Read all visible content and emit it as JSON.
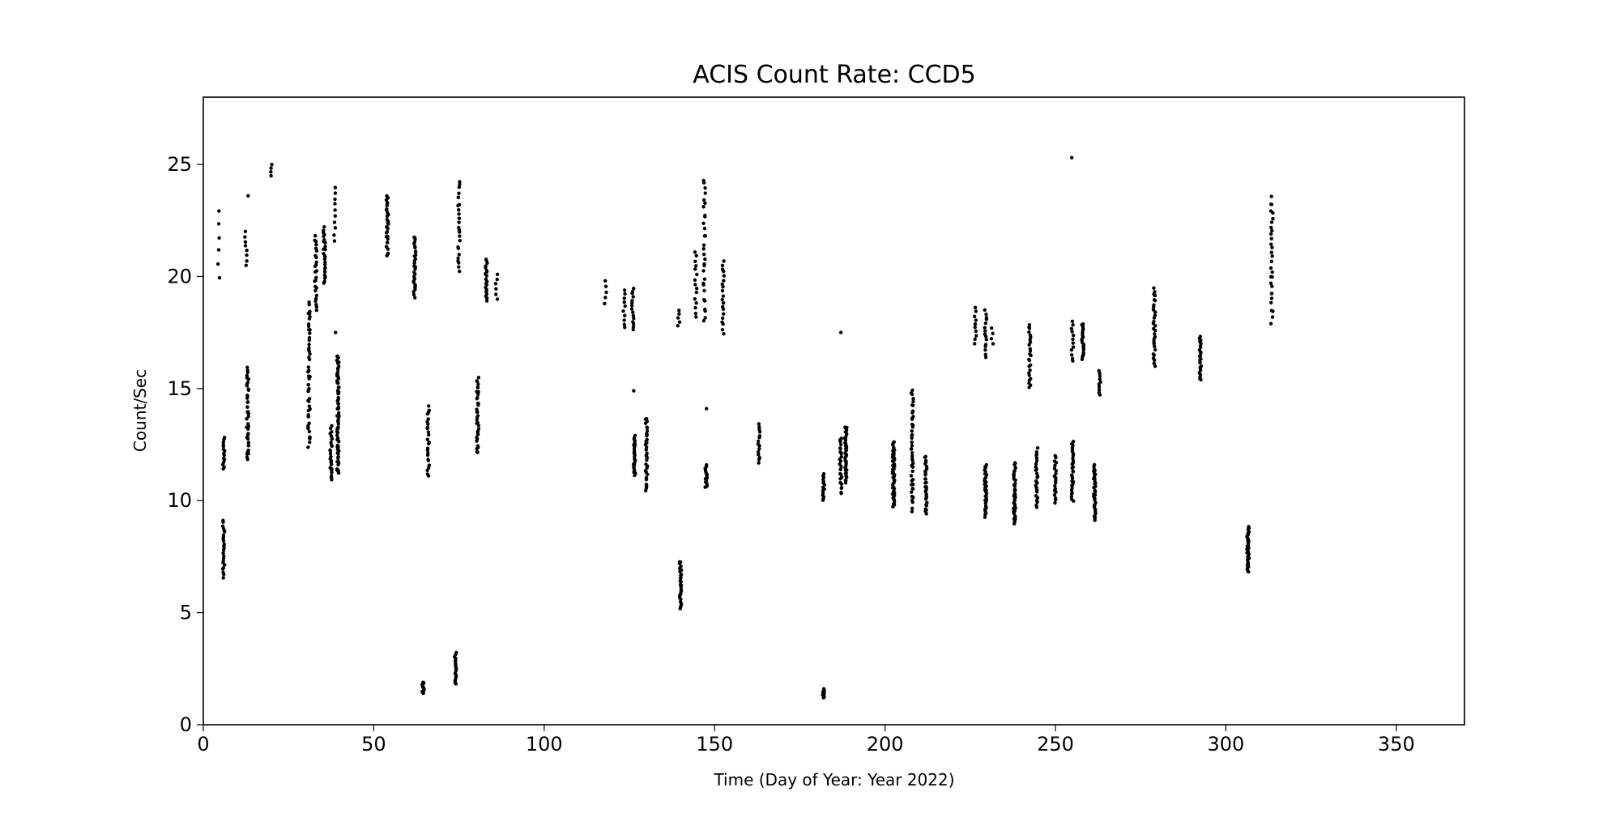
{
  "chart_data": {
    "type": "scatter",
    "title": "ACIS Count Rate: CCD5",
    "xlabel": "Time (Day of Year: Year 2022)",
    "ylabel": "Count/Sec",
    "xlim": [
      0,
      370
    ],
    "ylim": [
      0,
      28
    ],
    "xticks": [
      0,
      50,
      100,
      150,
      200,
      250,
      300,
      350
    ],
    "yticks": [
      0,
      5,
      10,
      15,
      20,
      25
    ],
    "grid": false,
    "marker_color": "#000000",
    "note": "points grouped as vertical clusters: x (day), y range (count/sec), approximate point count",
    "clusters": [
      {
        "x": 4.5,
        "y": [
          20,
          22.9
        ],
        "n": 6
      },
      {
        "x": 6,
        "y": [
          11.4,
          12.8
        ],
        "n": 15
      },
      {
        "x": 6,
        "y": [
          6.6,
          9.1
        ],
        "n": 25
      },
      {
        "x": 12.5,
        "y": [
          20.5,
          22
        ],
        "n": 8
      },
      {
        "x": 13,
        "y": [
          11.8,
          15.9
        ],
        "n": 40
      },
      {
        "x": 13,
        "y": [
          23.6,
          23.6
        ],
        "n": 1
      },
      {
        "x": 20,
        "y": [
          24.5,
          25
        ],
        "n": 4
      },
      {
        "x": 31,
        "y": [
          12.4,
          18.8
        ],
        "n": 50
      },
      {
        "x": 33,
        "y": [
          18.5,
          21.8
        ],
        "n": 25
      },
      {
        "x": 35.5,
        "y": [
          19.7,
          22.2
        ],
        "n": 25
      },
      {
        "x": 37.5,
        "y": [
          10.9,
          13.3
        ],
        "n": 25
      },
      {
        "x": 38.5,
        "y": [
          21.6,
          24
        ],
        "n": 10
      },
      {
        "x": 39.5,
        "y": [
          11.2,
          16.5
        ],
        "n": 80
      },
      {
        "x": 39,
        "y": [
          17.5,
          17.5
        ],
        "n": 1
      },
      {
        "x": 54,
        "y": [
          20.9,
          23.6
        ],
        "n": 30
      },
      {
        "x": 62,
        "y": [
          19.1,
          21.8
        ],
        "n": 30
      },
      {
        "x": 64.5,
        "y": [
          1.4,
          1.9
        ],
        "n": 15
      },
      {
        "x": 66,
        "y": [
          11.1,
          14.2
        ],
        "n": 25
      },
      {
        "x": 74,
        "y": [
          1.8,
          3.2
        ],
        "n": 20
      },
      {
        "x": 75,
        "y": [
          20.2,
          24.3
        ],
        "n": 25
      },
      {
        "x": 80.5,
        "y": [
          12.1,
          15.5
        ],
        "n": 35
      },
      {
        "x": 83,
        "y": [
          18.9,
          20.8
        ],
        "n": 20
      },
      {
        "x": 86,
        "y": [
          19,
          20.1
        ],
        "n": 6
      },
      {
        "x": 118,
        "y": [
          18.8,
          19.8
        ],
        "n": 5
      },
      {
        "x": 123.5,
        "y": [
          17.7,
          19.4
        ],
        "n": 10
      },
      {
        "x": 126,
        "y": [
          17.6,
          19.5
        ],
        "n": 15
      },
      {
        "x": 126.5,
        "y": [
          11.1,
          12.9
        ],
        "n": 25
      },
      {
        "x": 126.5,
        "y": [
          14.9,
          14.9
        ],
        "n": 1
      },
      {
        "x": 130,
        "y": [
          10.4,
          13.7
        ],
        "n": 35
      },
      {
        "x": 139.5,
        "y": [
          17.8,
          18.5
        ],
        "n": 5
      },
      {
        "x": 140,
        "y": [
          5.2,
          7.3
        ],
        "n": 30
      },
      {
        "x": 144.5,
        "y": [
          18.2,
          21.1
        ],
        "n": 15
      },
      {
        "x": 147,
        "y": [
          18,
          24.3
        ],
        "n": 30
      },
      {
        "x": 147.5,
        "y": [
          10.6,
          11.6
        ],
        "n": 15
      },
      {
        "x": 147.5,
        "y": [
          14.1,
          14.1
        ],
        "n": 1
      },
      {
        "x": 152.5,
        "y": [
          17.5,
          20.7
        ],
        "n": 20
      },
      {
        "x": 163,
        "y": [
          11.7,
          13.4
        ],
        "n": 15
      },
      {
        "x": 182,
        "y": [
          10,
          11.2
        ],
        "n": 15
      },
      {
        "x": 182,
        "y": [
          1.2,
          1.6
        ],
        "n": 10
      },
      {
        "x": 187,
        "y": [
          10.3,
          12.8
        ],
        "n": 25
      },
      {
        "x": 187,
        "y": [
          17.5,
          17.5
        ],
        "n": 1
      },
      {
        "x": 188.5,
        "y": [
          10.8,
          13.3
        ],
        "n": 40
      },
      {
        "x": 202.5,
        "y": [
          9.7,
          12.6
        ],
        "n": 50
      },
      {
        "x": 208,
        "y": [
          9.6,
          14.9
        ],
        "n": 45
      },
      {
        "x": 212,
        "y": [
          9.4,
          12
        ],
        "n": 30
      },
      {
        "x": 226.5,
        "y": [
          17,
          18.6
        ],
        "n": 10
      },
      {
        "x": 229.5,
        "y": [
          9.3,
          11.6
        ],
        "n": 35
      },
      {
        "x": 229.5,
        "y": [
          16.4,
          18.5
        ],
        "n": 15
      },
      {
        "x": 231.5,
        "y": [
          17,
          17.7
        ],
        "n": 4
      },
      {
        "x": 238,
        "y": [
          9,
          11.7
        ],
        "n": 40
      },
      {
        "x": 242.5,
        "y": [
          15,
          17.9
        ],
        "n": 25
      },
      {
        "x": 244.5,
        "y": [
          9.7,
          12.3
        ],
        "n": 25
      },
      {
        "x": 250,
        "y": [
          9.9,
          12
        ],
        "n": 20
      },
      {
        "x": 255,
        "y": [
          10,
          12.6
        ],
        "n": 30
      },
      {
        "x": 255,
        "y": [
          16.2,
          18
        ],
        "n": 12
      },
      {
        "x": 255,
        "y": [
          25.3,
          25.3
        ],
        "n": 1
      },
      {
        "x": 258,
        "y": [
          16.3,
          17.9
        ],
        "n": 20
      },
      {
        "x": 261.5,
        "y": [
          9.1,
          11.6
        ],
        "n": 35
      },
      {
        "x": 263,
        "y": [
          14.7,
          15.8
        ],
        "n": 10
      },
      {
        "x": 279,
        "y": [
          16,
          19.5
        ],
        "n": 30
      },
      {
        "x": 292.5,
        "y": [
          15.4,
          17.3
        ],
        "n": 25
      },
      {
        "x": 306.5,
        "y": [
          6.8,
          8.8
        ],
        "n": 35
      },
      {
        "x": 313.5,
        "y": [
          18,
          23.5
        ],
        "n": 30
      }
    ]
  }
}
